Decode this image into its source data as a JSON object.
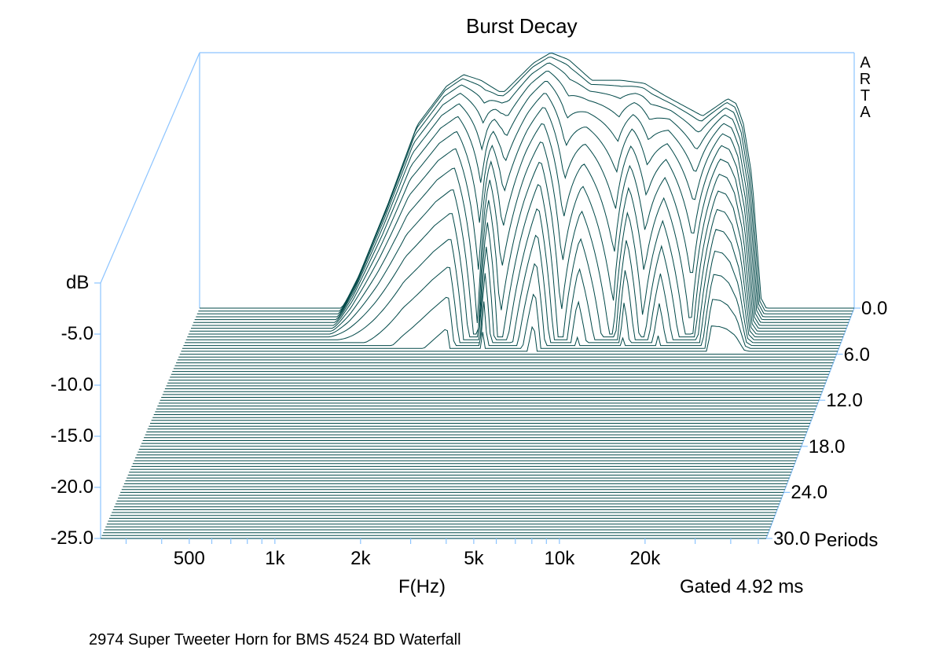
{
  "chart_data": {
    "type": "waterfall",
    "title": "Burst Decay",
    "watermark": "ARTA",
    "xlabel": "F(Hz)",
    "ylabel": "dB",
    "zlabel": "Periods",
    "x_scale": "log",
    "xlim": [
      244,
      53300
    ],
    "ylim": [
      -25.0,
      0.0
    ],
    "zlim": [
      0.0,
      30.0
    ],
    "x_ticks": [
      "500",
      "1k",
      "2k",
      "5k",
      "10k",
      "20k"
    ],
    "x_tick_values": [
      500,
      1000,
      2000,
      5000,
      10000,
      20000
    ],
    "x_minor_ticks": [
      300,
      400,
      500,
      600,
      700,
      800,
      900,
      1000,
      2000,
      3000,
      4000,
      5000,
      6000,
      7000,
      8000,
      9000,
      10000,
      20000,
      30000,
      40000,
      50000
    ],
    "y_ticks": [
      "-5.0",
      "-10.0",
      "-15.0",
      "-20.0",
      "-25.0"
    ],
    "y_tick_values": [
      -5,
      -10,
      -15,
      -20,
      -25
    ],
    "z_ticks": [
      "0.0",
      "6.0",
      "12.0",
      "18.0",
      "24.0",
      "30.0"
    ],
    "z_tick_values": [
      0,
      6,
      12,
      18,
      24,
      30
    ],
    "slice_count": 81,
    "initial_response": {
      "freq_hz": [
        785,
        822,
        906,
        1150,
        1462,
        1858,
        2142,
        2471,
        2866,
        3000,
        3811,
        4395,
        5096,
        6150,
        7816,
        9487,
        11220,
        15310,
        18840,
        20230,
        21440,
        23010,
        24720,
        25850
      ],
      "db": [
        -25,
        -24.1,
        -21.8,
        -14.8,
        -7.1,
        -3.3,
        -2.15,
        -2.7,
        -3.8,
        -3.8,
        -1.0,
        0.0,
        -0.7,
        -2.7,
        -2.7,
        -3.0,
        -4.2,
        -6.2,
        -4.5,
        -5.0,
        -7.0,
        -12.2,
        -24.0,
        -25
      ]
    },
    "decay_to_floor_periods": {
      "freq_hz": [
        785,
        1462,
        2142,
        2600,
        2866,
        3155,
        4395,
        5200,
        6150,
        7910,
        9000,
        10190,
        12000,
        14930,
        18840,
        25850
      ],
      "periods": [
        4,
        5,
        5.5,
        3,
        5.5,
        3.5,
        6,
        3.5,
        5,
        3.2,
        5,
        3.5,
        5,
        3,
        6,
        6
      ]
    },
    "annotation": "Gated 4.92 ms",
    "caption": "2974 Super Tweeter Horn for BMS 4524  BD Waterfall",
    "colors": {
      "trace": "#004848",
      "axis": "#8cc4ff",
      "fill": "#ffffff"
    }
  }
}
